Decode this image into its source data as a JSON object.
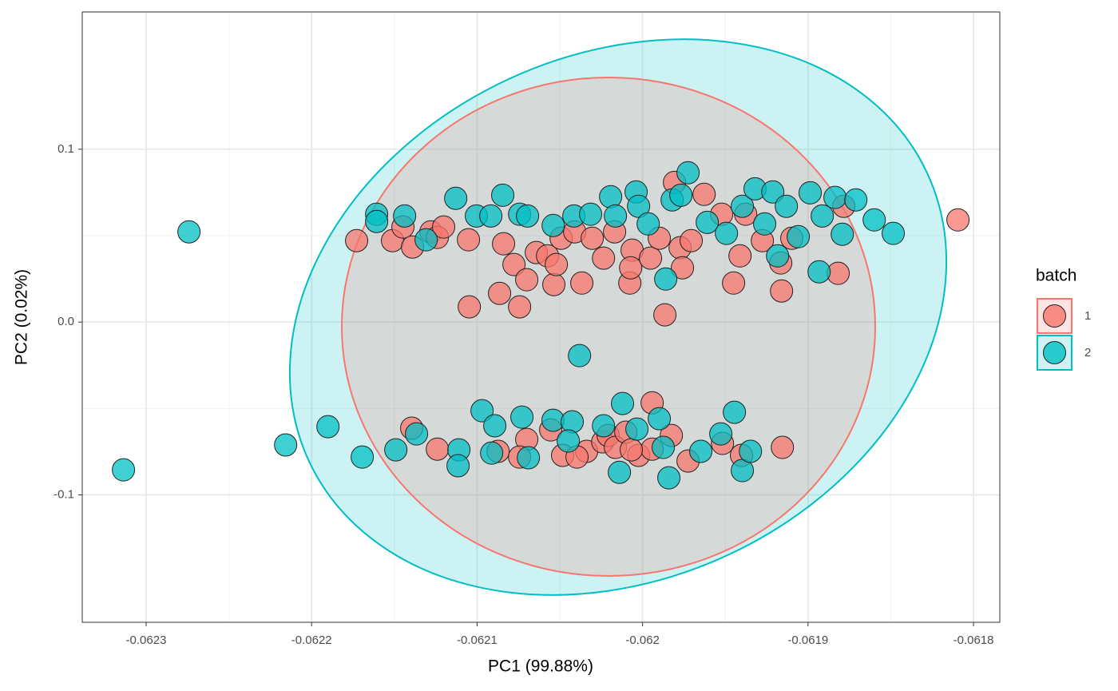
{
  "chart_data": {
    "type": "scatter",
    "x_label": "PC1 (99.88%)",
    "y_label": "PC2 (0.02%)",
    "legend_title": "batch",
    "legend_position": "right",
    "grid": true,
    "xlim": [
      -0.0623386,
      -0.0617841
    ],
    "ylim": [
      -0.1737,
      0.1794
    ],
    "xticks": [
      -0.0623,
      -0.0622,
      -0.0621,
      -0.062,
      -0.0619,
      -0.0618
    ],
    "yticks": [
      -0.1,
      {
        "value": 0,
        "label": "0.0"
      },
      0.1
    ],
    "series": [
      {
        "name": "1",
        "color": "#F8766D",
        "x": [
          -0.0621728,
          -0.0621511,
          -0.0621448,
          -0.062139,
          -0.0621279,
          -0.062124,
          -0.0621202,
          -0.0621052,
          -0.0621047,
          -0.0620864,
          -0.062084,
          -0.0620777,
          -0.0620743,
          -0.06207,
          -0.0620642,
          -0.0620574,
          -0.0620536,
          -0.0620521,
          -0.0620492,
          -0.062041,
          -0.0620367,
          -0.0620304,
          -0.0620236,
          -0.0620169,
          -0.0620077,
          -0.0620063,
          -0.0620072,
          -0.0619952,
          -0.0619899,
          -0.0619807,
          -0.0619773,
          -0.0619759,
          -0.0619706,
          -0.0619628,
          -0.0619522,
          -0.061945,
          -0.0619411,
          -0.0619377,
          -0.0619276,
          -0.0619165,
          -0.0619098,
          -0.061916,
          -0.0618818,
          -0.0618784,
          -0.0619865,
          -0.0618094,
          -0.0621395,
          -0.062124,
          -0.0620873,
          -0.06207,
          -0.0620555,
          -0.0620483,
          -0.0620338,
          -0.0620241,
          -0.0620208,
          -0.0620164,
          -0.0620101,
          -0.0620024,
          -0.0619942,
          -0.0619942,
          -0.0619826,
          -0.0619725,
          -0.0619517,
          -0.0619402,
          -0.0619155,
          -0.0620743,
          -0.0620396,
          -0.0620068
        ],
        "values": [
          0.0471,
          0.0471,
          0.055,
          0.0434,
          0.0522,
          0.049,
          0.055,
          0.0476,
          0.0088,
          0.0166,
          0.0453,
          0.0333,
          0.0088,
          0.0245,
          0.0402,
          0.0383,
          0.0217,
          0.0333,
          0.0485,
          0.0522,
          0.0226,
          0.0485,
          0.037,
          0.0522,
          0.0226,
          0.0416,
          0.0314,
          0.037,
          0.0485,
          0.0808,
          0.043,
          0.0314,
          0.0471,
          0.0739,
          0.0624,
          0.0226,
          0.0383,
          0.0624,
          0.0471,
          0.0342,
          0.0485,
          0.018,
          0.0282,
          0.067,
          0.0042,
          0.0591,
          -0.0614,
          -0.0735,
          -0.0748,
          -0.0679,
          -0.0624,
          -0.0771,
          -0.0748,
          -0.0693,
          -0.0656,
          -0.0725,
          -0.0637,
          -0.0771,
          -0.0467,
          -0.0735,
          -0.0656,
          -0.0804,
          -0.0702,
          -0.0771,
          -0.0725,
          -0.0781,
          -0.0781,
          -0.0739
        ]
      },
      {
        "name": "2",
        "color": "#00BFC4",
        "x": [
          -0.0621607,
          -0.0621607,
          -0.0621438,
          -0.0621308,
          -0.0621129,
          -0.0621004,
          -0.0620917,
          -0.0620845,
          -0.0620743,
          -0.0620695,
          -0.062054,
          -0.0620415,
          -0.0620314,
          -0.0620193,
          -0.0620164,
          -0.0620039,
          -0.0620024,
          -0.0619966,
          -0.0619821,
          -0.0619768,
          -0.0619725,
          -0.0619609,
          -0.0619493,
          -0.0619397,
          -0.061932,
          -0.0619262,
          -0.0619213,
          -0.0619131,
          -0.0619059,
          -0.0618987,
          -0.0618933,
          -0.0618914,
          -0.0618837,
          -0.0618793,
          -0.0618711,
          -0.061986,
          -0.0620381,
          -0.0623137,
          -0.0622741,
          -0.06186,
          -0.0618485,
          -0.0619184,
          -0.0622157,
          -0.0621901,
          -0.0621694,
          -0.0621491,
          -0.0621366,
          -0.062111,
          -0.0621115,
          -0.062097,
          -0.0620893,
          -0.0620912,
          -0.0620729,
          -0.062069,
          -0.0620541,
          -0.0620425,
          -0.0620449,
          -0.0620236,
          -0.0620121,
          -0.062014,
          -0.0620034,
          -0.0619899,
          -0.0619875,
          -0.0619841,
          -0.0619648,
          -0.0619527,
          -0.0619445,
          -0.0619397,
          -0.0619348
        ],
        "values": [
          0.0624,
          0.0582,
          0.0614,
          0.0476,
          0.0716,
          0.0614,
          0.0614,
          0.0734,
          0.0624,
          0.0614,
          0.0559,
          0.0614,
          0.0624,
          0.0725,
          0.0614,
          0.0753,
          0.067,
          0.0568,
          0.0707,
          0.0734,
          0.0864,
          0.0577,
          0.0513,
          0.067,
          0.0771,
          0.0568,
          0.0753,
          0.067,
          0.0494,
          0.0748,
          0.0291,
          0.0614,
          0.0721,
          0.0508,
          0.0707,
          0.0249,
          -0.0194,
          -0.0855,
          0.0522,
          0.0591,
          0.0513,
          0.0383,
          -0.0711,
          -0.0605,
          -0.0781,
          -0.0739,
          -0.0647,
          -0.0739,
          -0.0831,
          -0.0513,
          -0.06,
          -0.0758,
          -0.055,
          -0.0785,
          -0.0568,
          -0.0577,
          -0.0688,
          -0.06,
          -0.0471,
          -0.0869,
          -0.0619,
          -0.0559,
          -0.0725,
          -0.0901,
          -0.0748,
          -0.0647,
          -0.0522,
          -0.0859,
          -0.0748
        ]
      }
    ]
  }
}
